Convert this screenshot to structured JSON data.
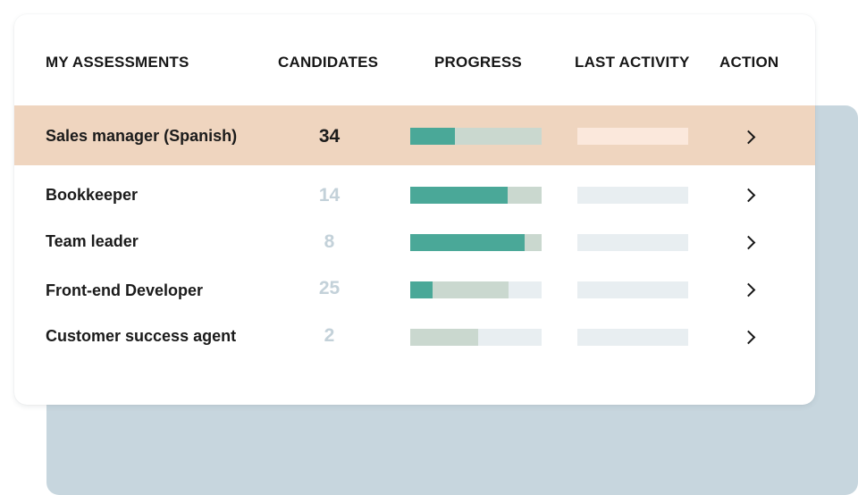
{
  "header": {
    "name": "MY ASSESSMENTS",
    "candidates": "CANDIDATES",
    "progress": "PROGRESS",
    "last_activity": "LAST ACTIVITY",
    "action": "ACTION"
  },
  "colors": {
    "highlight_row": "#efd5bf",
    "progress_primary": "#4aa898",
    "progress_secondary": "#cad8cf",
    "track": "#e8eef1",
    "background_panel": "#c7d6de"
  },
  "rows": [
    {
      "name": "Sales manager (Spanish)",
      "candidates": "34",
      "progress_primary": 0.34,
      "progress_secondary": 1.0,
      "highlighted": true,
      "action_icon": "chevron-right-icon"
    },
    {
      "name": "Bookkeeper",
      "candidates": "14",
      "progress_primary": 0.74,
      "progress_secondary": 1.0,
      "highlighted": false,
      "action_icon": "chevron-right-icon"
    },
    {
      "name": "Team leader",
      "candidates": "8",
      "progress_primary": 0.87,
      "progress_secondary": 1.0,
      "highlighted": false,
      "action_icon": "chevron-right-icon"
    },
    {
      "name": "Front-end Developer",
      "candidates": "25",
      "progress_primary": 0.17,
      "progress_secondary": 0.75,
      "highlighted": false,
      "action_icon": "chevron-right-icon"
    },
    {
      "name": "Customer success agent",
      "candidates": "2",
      "progress_primary": 0.0,
      "progress_secondary": 0.52,
      "highlighted": false,
      "action_icon": "chevron-right-icon"
    }
  ]
}
